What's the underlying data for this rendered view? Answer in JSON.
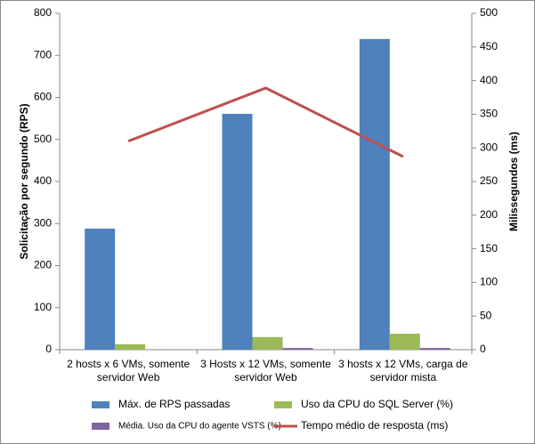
{
  "chart_data": {
    "type": "bar",
    "categories": [
      "2 hosts x 6 VMs, somente servidor Web",
      "3 Hosts x 12 VMs, somente servidor Web",
      "3 hosts x 12 VMs, carga de servidor mista"
    ],
    "ylabel": "Solicitação por segundo (RPS)",
    "y2label": "Milissegundos (ms)",
    "ylim": [
      0,
      800
    ],
    "yticks": [
      0,
      100,
      200,
      300,
      400,
      500,
      600,
      700,
      800
    ],
    "y2lim": [
      0,
      500
    ],
    "y2ticks": [
      0,
      50,
      100,
      150,
      200,
      250,
      300,
      350,
      400,
      450,
      500
    ],
    "grid": false,
    "legend": "bottom",
    "series": [
      {
        "name": "Máx. de RPS passadas",
        "color": "#4f81bd",
        "values": [
          288,
          561,
          739
        ]
      },
      {
        "name": "Uso da CPU do SQL Server (%)",
        "color": "#9bbb59",
        "values": [
          13,
          30,
          38
        ]
      },
      {
        "name": "Média. Uso da CPU do agente VSTS (%)",
        "color": "#8064a2",
        "values": [
          0,
          4,
          4
        ]
      },
      {
        "name": "Tempo médio de resposta (ms)",
        "color": "#c0504d",
        "type": "line",
        "axis": "y2",
        "values": [
          310,
          389,
          287
        ]
      }
    ]
  }
}
